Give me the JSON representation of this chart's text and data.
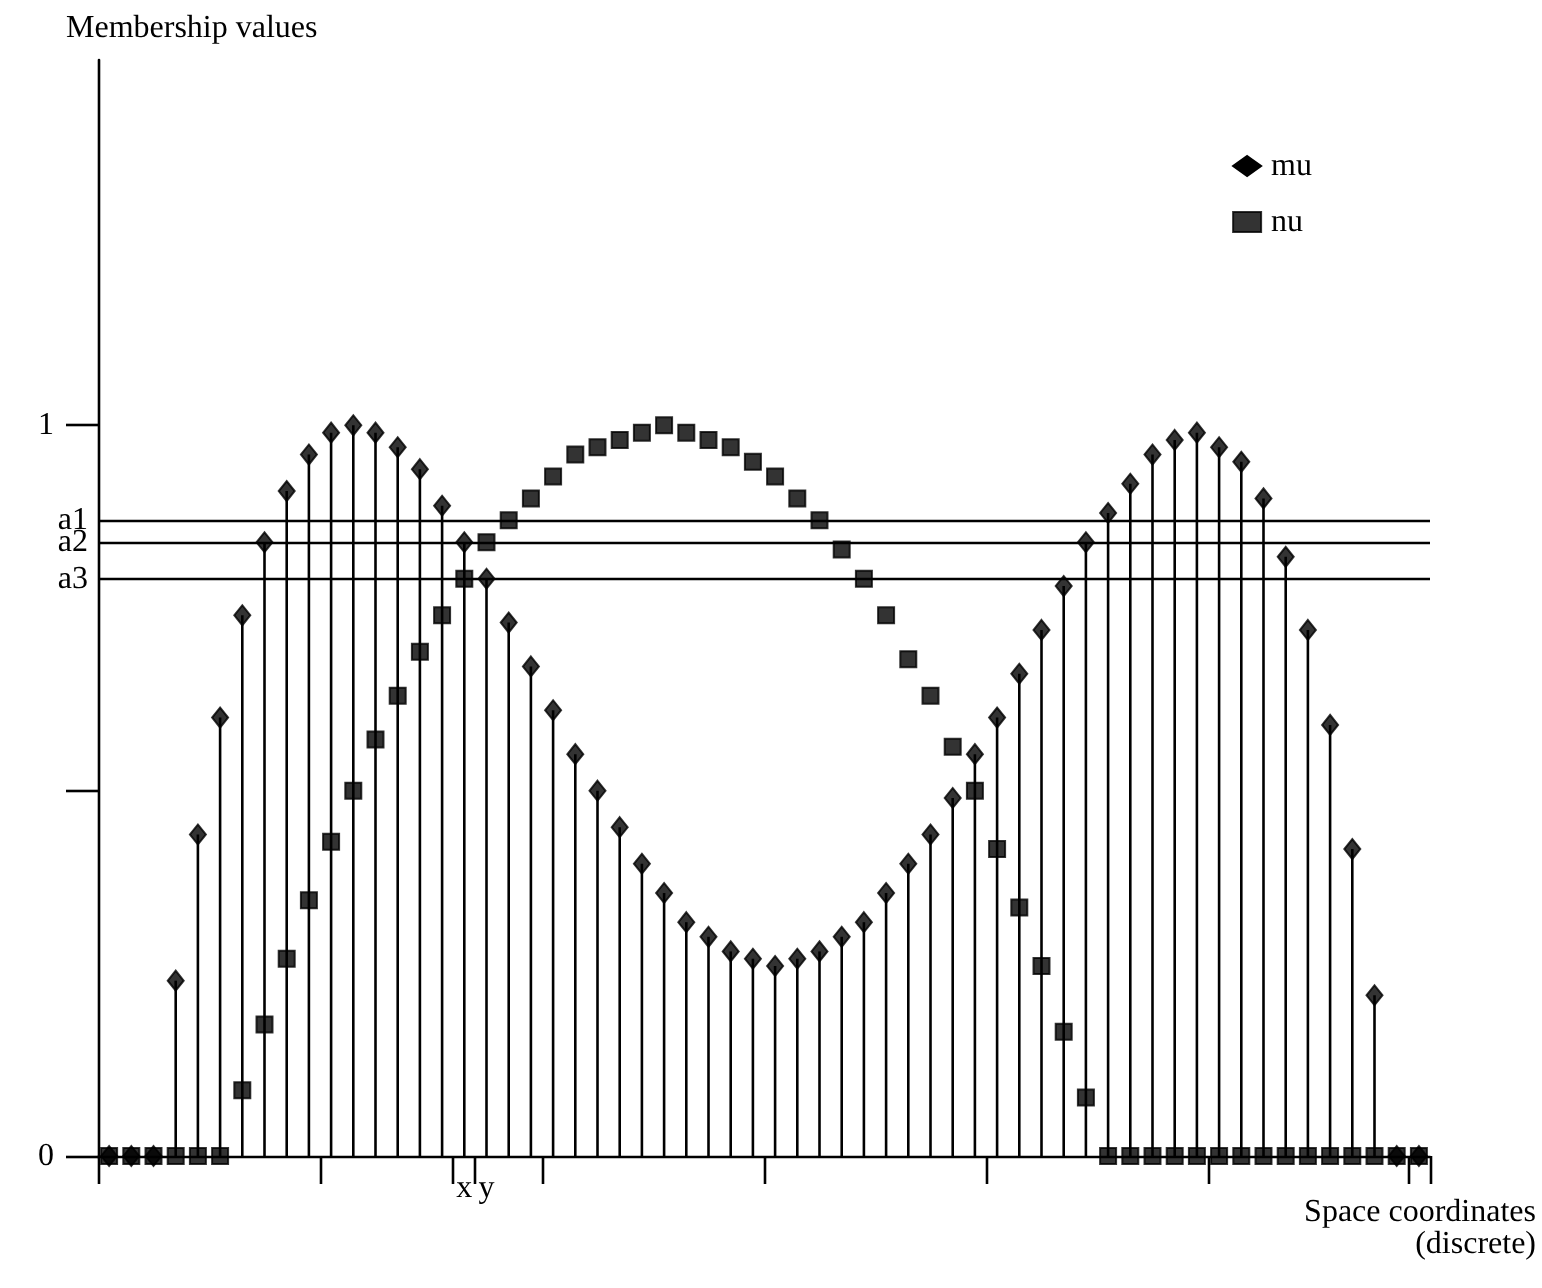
{
  "chart_data": {
    "type": "lollipop",
    "ylabel": "Membership values",
    "xlabel": "Space coordinates\n(discrete)",
    "categories": [
      null,
      null,
      null,
      null,
      null,
      null,
      null,
      null,
      null,
      null,
      null,
      null,
      null,
      null,
      null,
      null,
      "x",
      "y",
      null,
      null,
      null,
      null,
      null,
      null,
      null,
      null,
      null,
      null,
      null,
      null,
      null,
      null,
      null,
      null,
      null,
      null,
      null,
      null,
      null,
      null,
      null,
      null,
      null,
      null,
      null,
      null,
      null,
      null,
      null,
      null,
      null,
      null,
      null,
      null,
      null,
      null,
      null,
      null,
      null,
      null
    ],
    "ylim": [
      0,
      1.5
    ],
    "yticks": [
      0,
      {
        "value": 0.5,
        "label": null
      },
      1
    ],
    "series": [
      {
        "name": "mu",
        "marker": "diamond",
        "color": "#000000",
        "values": [
          0,
          0,
          0,
          0.24,
          0.44,
          0.6,
          0.74,
          0.84,
          0.91,
          0.96,
          0.99,
          1.0,
          0.99,
          0.97,
          0.94,
          0.89,
          0.84,
          0.79,
          0.73,
          0.67,
          0.61,
          0.55,
          0.5,
          0.45,
          0.4,
          0.36,
          0.32,
          0.3,
          0.28,
          0.27,
          0.26,
          0.27,
          0.28,
          0.3,
          0.32,
          0.36,
          0.4,
          0.44,
          0.49,
          0.55,
          0.6,
          0.66,
          0.72,
          0.78,
          0.84,
          0.88,
          0.92,
          0.96,
          0.98,
          0.99,
          0.97,
          0.95,
          0.9,
          0.82,
          0.72,
          0.59,
          0.42,
          0.22,
          0,
          0
        ]
      },
      {
        "name": "nu",
        "type": "scatter",
        "marker": "square",
        "color": "#000000",
        "values": [
          0,
          0,
          0,
          0,
          0,
          0,
          0.09,
          0.18,
          0.27,
          0.35,
          0.43,
          0.5,
          0.57,
          0.63,
          0.69,
          0.74,
          0.79,
          0.84,
          0.87,
          0.9,
          0.93,
          0.96,
          0.97,
          0.98,
          0.99,
          1.0,
          0.99,
          0.98,
          0.97,
          0.95,
          0.93,
          0.9,
          0.87,
          0.83,
          0.79,
          0.74,
          0.68,
          0.63,
          0.56,
          0.5,
          0.42,
          0.34,
          0.26,
          0.17,
          0.08,
          0,
          0,
          0,
          0,
          0,
          0,
          0,
          0,
          0,
          0,
          0,
          0,
          0,
          0,
          0
        ]
      }
    ],
    "ref_lines": [
      {
        "axis": "y",
        "value": 0.87,
        "label": "a1"
      },
      {
        "axis": "y",
        "value": 0.84,
        "label": "a2"
      },
      {
        "axis": "y",
        "value": 0.79,
        "label": "a3"
      }
    ],
    "legend": "top right",
    "grid": false
  }
}
